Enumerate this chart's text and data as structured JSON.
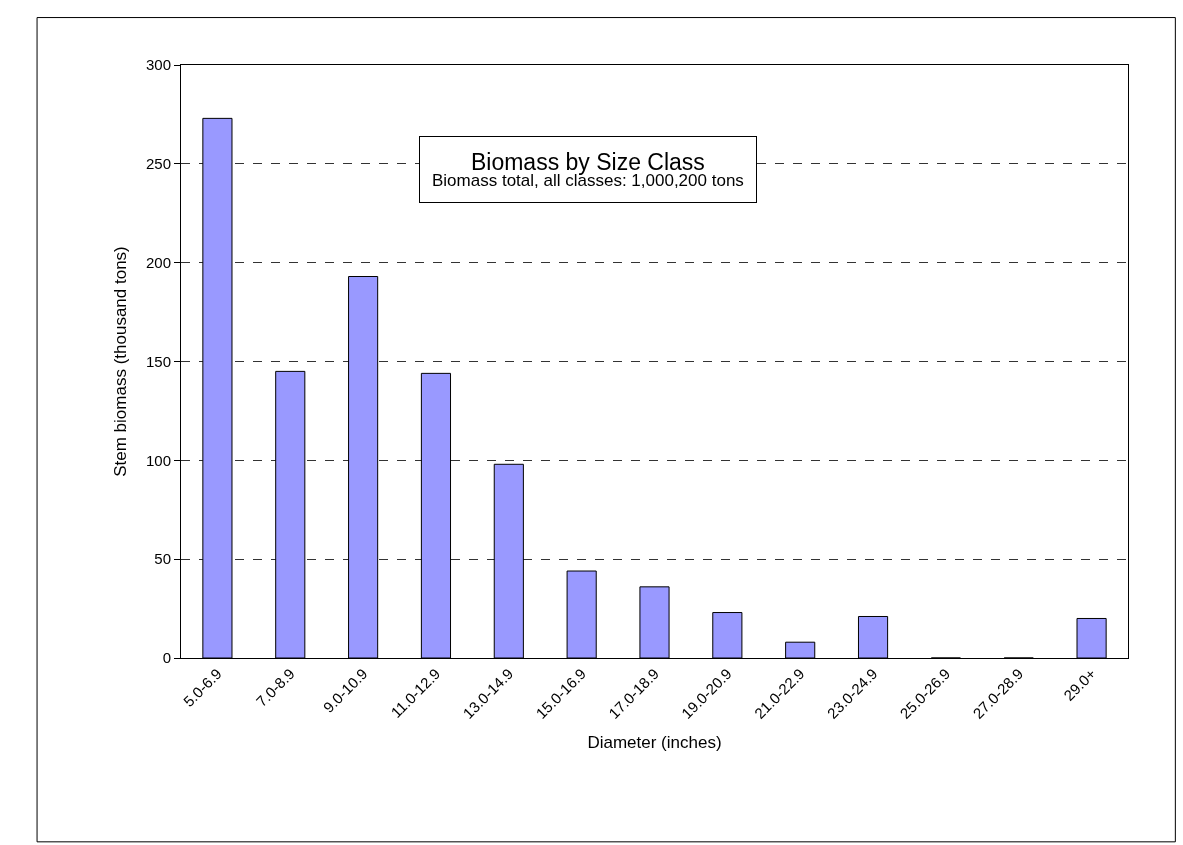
{
  "chart_data": {
    "type": "bar",
    "title": "Biomass by Size Class",
    "subtitle": "Biomass total, all classes: 1,000,200 tons",
    "xlabel": "Diameter (inches)",
    "ylabel": "Stem biomass (thousand tons)",
    "categories": [
      "5.0-6.9",
      "7.0-8.9",
      "9.0-10.9",
      "11.0-12.9",
      "13.0-14.9",
      "15.0-16.9",
      "17.0-18.9",
      "19.0-20.9",
      "21.0-22.9",
      "23.0-24.9",
      "25.0-26.9",
      "27.0-28.9",
      "29.0+"
    ],
    "values": [
      273,
      145,
      193,
      144,
      98,
      44,
      36,
      23,
      8,
      21,
      0,
      0,
      20
    ],
    "color": "#9999ff",
    "ylim": [
      0,
      300
    ],
    "yticks": [
      0,
      50,
      100,
      150,
      200,
      250,
      300
    ],
    "grid": "y",
    "legend": false
  }
}
